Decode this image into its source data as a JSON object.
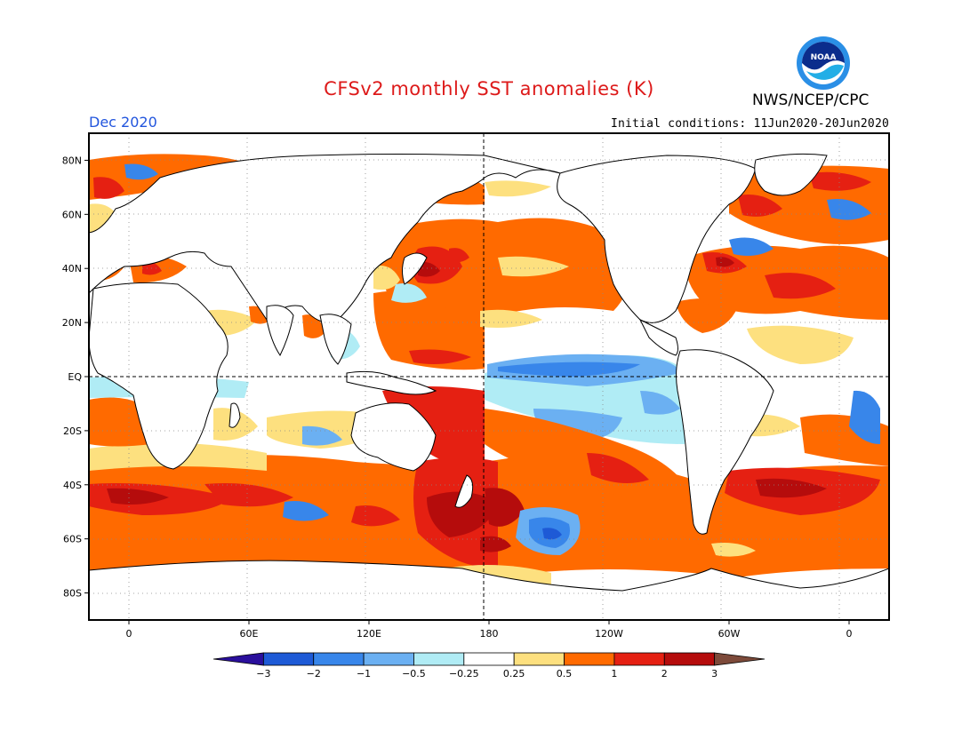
{
  "header": {
    "title": "CFSv2 monthly SST anomalies (K)",
    "agency": "NWS/NCEP/CPC",
    "logo_text": "NOAA",
    "valid_month": "Dec 2020",
    "initial_conditions": "Initial conditions: 11Jun2020-20Jun2020"
  },
  "map": {
    "projection": "cylindrical equidistant",
    "lon_range": [
      -20,
      380
    ],
    "lat_range": [
      -90,
      90
    ],
    "lat_ticks": [
      {
        "lat": 80,
        "label": "80N"
      },
      {
        "lat": 60,
        "label": "60N"
      },
      {
        "lat": 40,
        "label": "40N"
      },
      {
        "lat": 20,
        "label": "20N"
      },
      {
        "lat": 0,
        "label": "EQ"
      },
      {
        "lat": -20,
        "label": "20S"
      },
      {
        "lat": -40,
        "label": "40S"
      },
      {
        "lat": -60,
        "label": "60S"
      },
      {
        "lat": -80,
        "label": "80S"
      }
    ],
    "lon_ticks": [
      {
        "lon": 0,
        "label": "0"
      },
      {
        "lon": 60,
        "label": "60E"
      },
      {
        "lon": 120,
        "label": "120E"
      },
      {
        "lon": 180,
        "label": "180"
      },
      {
        "lon": 240,
        "label": "120W"
      },
      {
        "lon": 300,
        "label": "60W"
      },
      {
        "lon": 360,
        "label": "0"
      }
    ],
    "grid": "dotted",
    "land_color": "#ffffff",
    "anomaly_regions": [
      {
        "name": "central-eastern equatorial Pacific cold tongue",
        "lon": [
          180,
          280
        ],
        "lat": [
          -15,
          5
        ],
        "level": -1
      },
      {
        "name": "equatorial Pacific cool band",
        "lon": [
          160,
          285
        ],
        "lat": [
          -28,
          8
        ],
        "level": -0.5
      },
      {
        "name": "south Pacific cold pool",
        "lon": [
          193,
          225
        ],
        "lat": [
          -65,
          -50
        ],
        "level": -1.5
      },
      {
        "name": "western Pacific warm pool",
        "lon": [
          115,
          185
        ],
        "lat": [
          -15,
          30
        ],
        "level": 1
      },
      {
        "name": "north Pacific warm band",
        "lon": [
          160,
          235
        ],
        "lat": [
          25,
          55
        ],
        "level": 1
      },
      {
        "name": "Kuroshio extension warm core",
        "lon": [
          140,
          160
        ],
        "lat": [
          33,
          43
        ],
        "level": 2.5
      },
      {
        "name": "southwest Pacific warm",
        "lon": [
          150,
          200
        ],
        "lat": [
          -60,
          -25
        ],
        "level": 2
      },
      {
        "name": "southern ocean warm belt",
        "lon": [
          -20,
          380
        ],
        "lat": [
          -72,
          -32
        ],
        "level": 1
      },
      {
        "name": "north Atlantic warm",
        "lon": [
          280,
          360
        ],
        "lat": [
          15,
          65
        ],
        "level": 1
      },
      {
        "name": "Gulf Stream warm core",
        "lon": [
          290,
          310
        ],
        "lat": [
          35,
          45
        ],
        "level": 2.5
      }
    ]
  },
  "colorbar": {
    "levels": [
      "-3",
      "-2",
      "-1",
      "-0.5",
      "-0.25",
      "0.25",
      "0.5",
      "1",
      "2",
      "3"
    ],
    "colors": [
      "#2a0f9c",
      "#1e5ad6",
      "#3886ea",
      "#6bb0f2",
      "#b0ecf5",
      "#ffffff",
      "#fde07f",
      "#ff6a00",
      "#e52012",
      "#b50c0c",
      "#7d4a3a"
    ]
  }
}
